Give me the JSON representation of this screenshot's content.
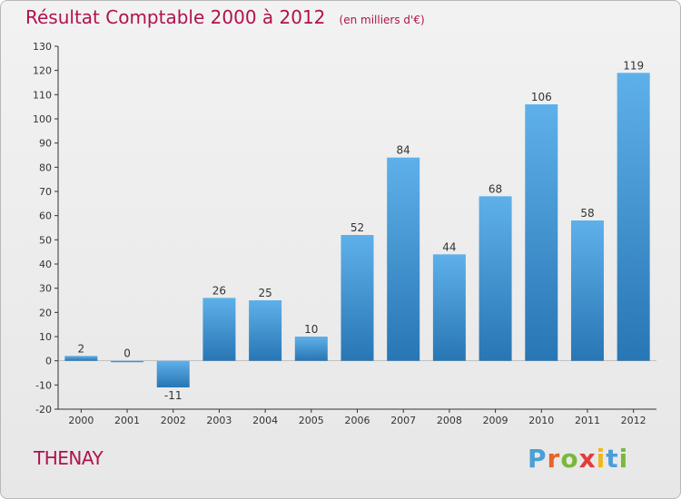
{
  "chart_data": {
    "type": "bar",
    "title": "Résultat Comptable 2000 à 2012",
    "subtitle": "(en milliers d'€)",
    "categories": [
      "2000",
      "2001",
      "2002",
      "2003",
      "2004",
      "2005",
      "2006",
      "2007",
      "2008",
      "2009",
      "2010",
      "2011",
      "2012"
    ],
    "values": [
      2,
      0,
      -11,
      26,
      25,
      10,
      52,
      84,
      44,
      68,
      106,
      58,
      119
    ],
    "value_labels": [
      "2",
      "0",
      "-11",
      "26",
      "25",
      "10",
      "52",
      "84",
      "44",
      "68",
      "106",
      "58",
      "119"
    ],
    "ylim": [
      -20,
      130
    ],
    "yticks": [
      -20,
      -10,
      0,
      10,
      20,
      30,
      40,
      50,
      60,
      70,
      80,
      90,
      100,
      110,
      120,
      130
    ],
    "xlabel": "",
    "ylabel": "",
    "grid": false,
    "colors": {
      "bar_top": "#5eb0ea",
      "bar_bottom": "#2876b4",
      "title": "#b0124e",
      "axis": "#333333"
    }
  },
  "footer": {
    "commune": "THENAY",
    "brand": "Proxiti",
    "brand_letters": [
      {
        "ch": "P",
        "color": "#4a9fd8"
      },
      {
        "ch": "r",
        "color": "#e7642a"
      },
      {
        "ch": "o",
        "color": "#7ab83c"
      },
      {
        "ch": "x",
        "color": "#e23b3b"
      },
      {
        "ch": "i",
        "color": "#f0b81e"
      },
      {
        "ch": "t",
        "color": "#4a9fd8"
      },
      {
        "ch": "i",
        "color": "#7ab83c"
      }
    ]
  }
}
